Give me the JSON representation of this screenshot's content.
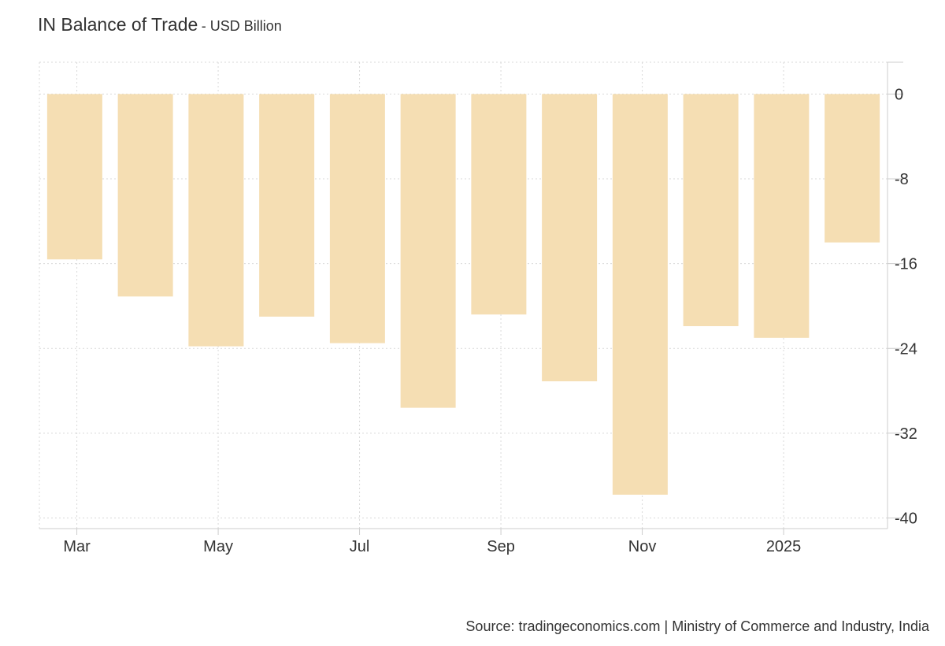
{
  "title": {
    "main": "IN Balance of Trade",
    "sub": "- USD Billion"
  },
  "source": "Source: tradingeconomics.com | Ministry of Commerce and Industry, India",
  "colors": {
    "bar": "#f5deb3",
    "grid": "#d9d9d9",
    "axis": "#cccccc",
    "text": "#333333"
  },
  "chart_data": {
    "type": "bar",
    "categories": [
      "2024-03",
      "2024-04",
      "2024-05",
      "2024-06",
      "2024-07",
      "2024-08",
      "2024-09",
      "2024-10",
      "2024-11",
      "2024-12",
      "2025-01",
      "2025-02"
    ],
    "values": [
      -15.6,
      -19.1,
      -23.8,
      -21.0,
      -23.5,
      -29.6,
      -20.8,
      -27.1,
      -37.8,
      -21.9,
      -23.0,
      -14.0
    ],
    "x_tick_labels": [
      {
        "index": 0,
        "label": "Mar"
      },
      {
        "index": 2,
        "label": "May"
      },
      {
        "index": 4,
        "label": "Jul"
      },
      {
        "index": 6,
        "label": "Sep"
      },
      {
        "index": 8,
        "label": "Nov"
      },
      {
        "index": 10,
        "label": "2025"
      }
    ],
    "y_ticks": [
      0,
      -8,
      -16,
      -24,
      -32,
      -40
    ],
    "ylim": [
      -41,
      3
    ],
    "y_axis_side": "right",
    "grid": true
  }
}
